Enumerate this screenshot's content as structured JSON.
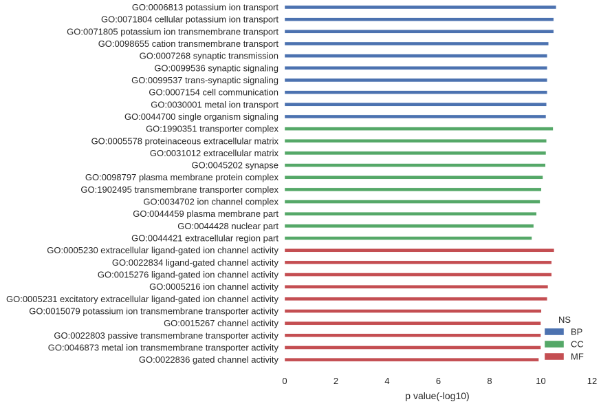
{
  "chart_data": {
    "type": "bar",
    "orientation": "horizontal",
    "title": "",
    "xlabel": "p value(-log10)",
    "ylabel": "",
    "xlim": [
      0,
      12
    ],
    "xticks": [
      "0",
      "2",
      "4",
      "6",
      "8",
      "10",
      "12"
    ],
    "grid": false,
    "legend": {
      "title": "NS",
      "placement": "bottom-right",
      "entries": [
        {
          "name": "BP",
          "color": "#4c72b0"
        },
        {
          "name": "CC",
          "color": "#55a868"
        },
        {
          "name": "MF",
          "color": "#c44e52"
        }
      ]
    },
    "bars": [
      {
        "label": "GO:0006813 potassium ion transport",
        "value": 10.6,
        "group": "BP"
      },
      {
        "label": "GO:0071804 cellular potassium ion transport",
        "value": 10.5,
        "group": "BP"
      },
      {
        "label": "GO:0071805 potassium ion transmembrane transport",
        "value": 10.5,
        "group": "BP"
      },
      {
        "label": "GO:0098655 cation transmembrane transport",
        "value": 10.3,
        "group": "BP"
      },
      {
        "label": "GO:0007268 synaptic transmission",
        "value": 10.25,
        "group": "BP"
      },
      {
        "label": "GO:0099536 synaptic signaling",
        "value": 10.25,
        "group": "BP"
      },
      {
        "label": "GO:0099537 trans-synaptic signaling",
        "value": 10.25,
        "group": "BP"
      },
      {
        "label": "GO:0007154 cell communication",
        "value": 10.25,
        "group": "BP"
      },
      {
        "label": "GO:0030001 metal ion transport",
        "value": 10.22,
        "group": "BP"
      },
      {
        "label": "GO:0044700 single organism signaling",
        "value": 10.2,
        "group": "BP"
      },
      {
        "label": "GO:1990351 transporter complex",
        "value": 10.48,
        "group": "CC"
      },
      {
        "label": "GO:0005578 proteinaceous extracellular matrix",
        "value": 10.22,
        "group": "CC"
      },
      {
        "label": "GO:0031012 extracellular matrix",
        "value": 10.2,
        "group": "CC"
      },
      {
        "label": "GO:0045202 synapse",
        "value": 10.18,
        "group": "CC"
      },
      {
        "label": "GO:0098797 plasma membrane protein complex",
        "value": 10.08,
        "group": "CC"
      },
      {
        "label": "GO:1902495 transmembrane transporter complex",
        "value": 10.02,
        "group": "CC"
      },
      {
        "label": "GO:0034702 ion channel complex",
        "value": 9.97,
        "group": "CC"
      },
      {
        "label": "GO:0044459 plasma membrane part",
        "value": 9.83,
        "group": "CC"
      },
      {
        "label": "GO:0044428 nuclear part",
        "value": 9.72,
        "group": "CC"
      },
      {
        "label": "GO:0044421 extracellular region part",
        "value": 9.65,
        "group": "CC"
      },
      {
        "label": "GO:0005230 extracellular ligand-gated ion channel activity",
        "value": 10.52,
        "group": "MF"
      },
      {
        "label": "GO:0022834 ligand-gated channel activity",
        "value": 10.42,
        "group": "MF"
      },
      {
        "label": "GO:0015276 ligand-gated ion channel activity",
        "value": 10.42,
        "group": "MF"
      },
      {
        "label": "GO:0005216 ion channel activity",
        "value": 10.28,
        "group": "MF"
      },
      {
        "label": "GO:0005231 excitatory extracellular ligand-gated ion channel activity",
        "value": 10.25,
        "group": "MF"
      },
      {
        "label": "GO:0015079 potassium ion transmembrane transporter activity",
        "value": 10.02,
        "group": "MF"
      },
      {
        "label": "GO:0015267 channel activity",
        "value": 10.0,
        "group": "MF"
      },
      {
        "label": "GO:0022803 passive transmembrane transporter activity",
        "value": 10.0,
        "group": "MF"
      },
      {
        "label": "GO:0046873 metal ion transmembrane transporter activity",
        "value": 10.0,
        "group": "MF"
      },
      {
        "label": "GO:0022836 gated channel activity",
        "value": 9.92,
        "group": "MF"
      }
    ]
  }
}
